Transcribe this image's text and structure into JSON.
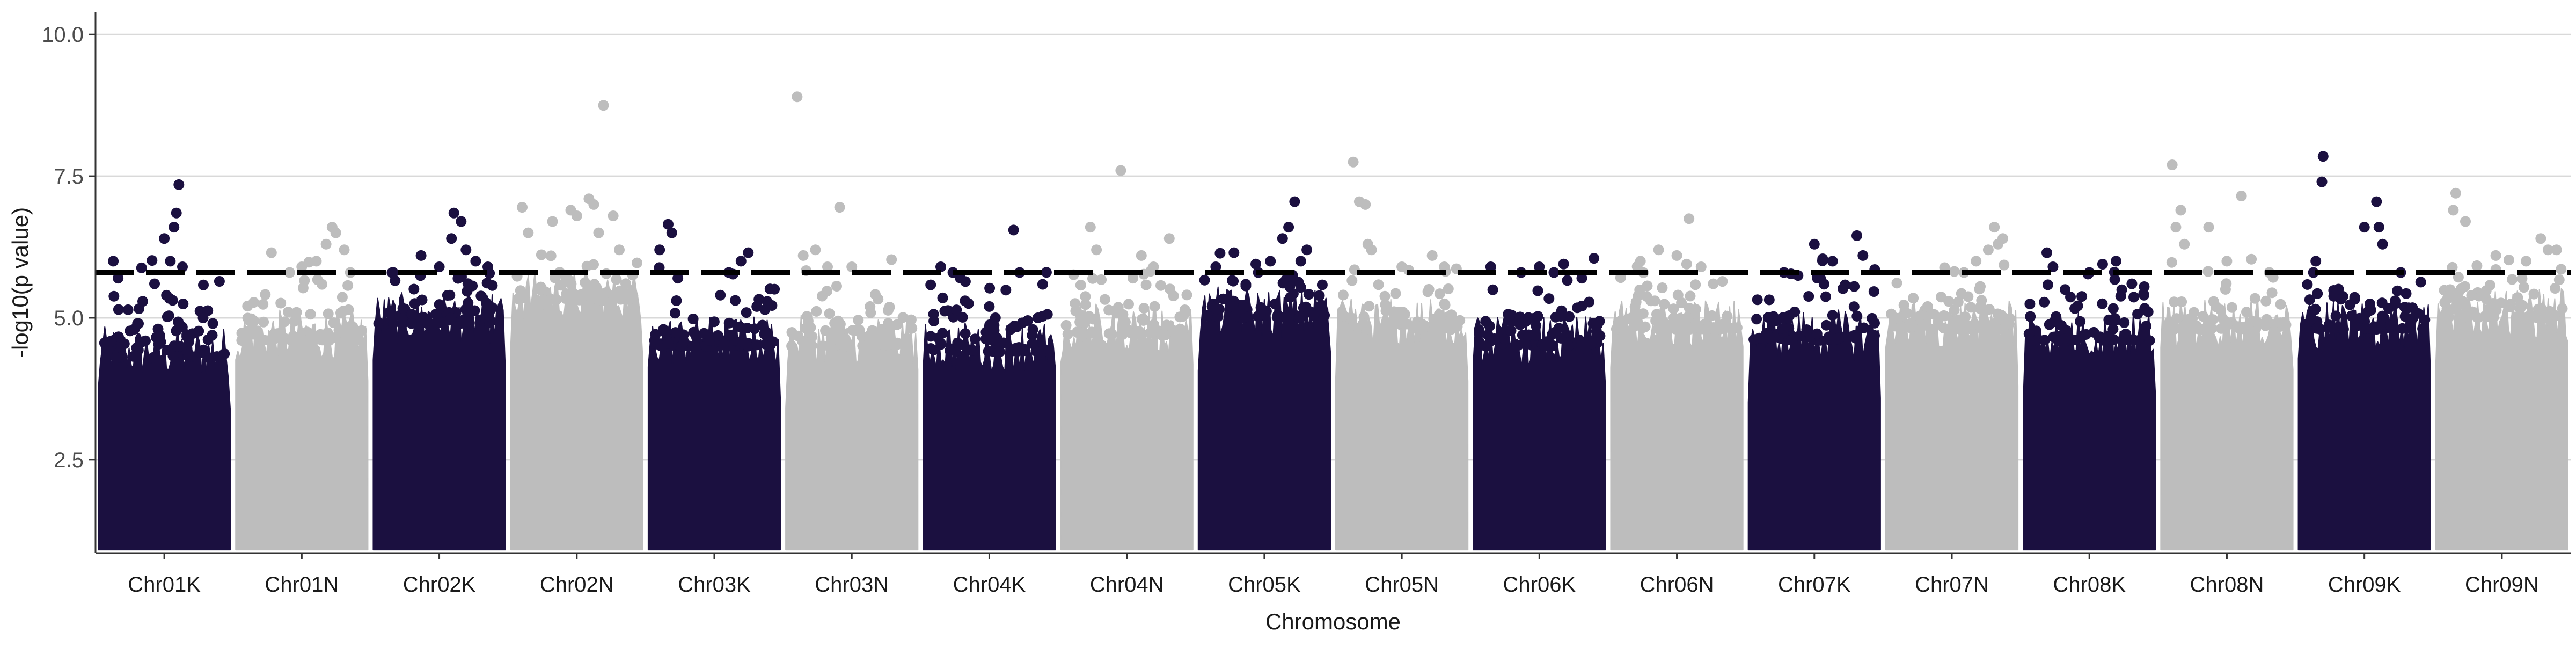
{
  "chart_data": {
    "type": "scatter",
    "title": "",
    "xlabel": "Chromosome",
    "ylabel": "-log10(p value)",
    "ylim": [
      0.85,
      10.4
    ],
    "y_ticks": [
      2.5,
      5.0,
      7.5,
      10.0
    ],
    "y_tick_labels": [
      "2.5",
      "5.0",
      "7.5",
      "10.0"
    ],
    "grid": "horizontal major lines",
    "legend": "none",
    "threshold": 5.8,
    "threshold_style": "dashed black line",
    "point_floor": 1.0,
    "colors": {
      "K": "#1b1040",
      "N": "#bdbdbd",
      "threshold": "#000000",
      "grid": "#d9d9d9",
      "axis": "#333333"
    },
    "categories": [
      "Chr01K",
      "Chr01N",
      "Chr02K",
      "Chr02N",
      "Chr03K",
      "Chr03N",
      "Chr04K",
      "Chr04N",
      "Chr05K",
      "Chr05N",
      "Chr06K",
      "Chr06N",
      "Chr07K",
      "Chr07N",
      "Chr08K",
      "Chr08N",
      "Chr09K",
      "Chr09N"
    ],
    "series": [
      {
        "category": "Chr01K",
        "color": "#1b1040",
        "dense_top": 4.3,
        "max_y": 7.35,
        "top_points": [
          [
            0.08,
            6.0
          ],
          [
            0.12,
            5.7
          ],
          [
            0.28,
            4.9
          ],
          [
            0.42,
            5.6
          ],
          [
            0.5,
            6.4
          ],
          [
            0.55,
            6.0
          ],
          [
            0.58,
            6.6
          ],
          [
            0.6,
            6.85
          ],
          [
            0.62,
            7.35
          ],
          [
            0.65,
            5.9
          ],
          [
            0.82,
            5.0
          ],
          [
            0.9,
            4.9
          ]
        ]
      },
      {
        "category": "Chr01N",
        "color": "#bdbdbd",
        "dense_top": 4.6,
        "max_y": 6.6,
        "top_points": [
          [
            0.25,
            6.15
          ],
          [
            0.4,
            5.8
          ],
          [
            0.5,
            5.9
          ],
          [
            0.62,
            6.0
          ],
          [
            0.7,
            6.3
          ],
          [
            0.75,
            6.6
          ],
          [
            0.78,
            6.5
          ],
          [
            0.85,
            6.2
          ],
          [
            0.9,
            5.8
          ]
        ]
      },
      {
        "category": "Chr02K",
        "color": "#1b1040",
        "dense_top": 4.9,
        "max_y": 6.85,
        "top_points": [
          [
            0.12,
            5.8
          ],
          [
            0.35,
            6.1
          ],
          [
            0.5,
            5.9
          ],
          [
            0.6,
            6.4
          ],
          [
            0.62,
            6.85
          ],
          [
            0.68,
            6.7
          ],
          [
            0.72,
            6.2
          ],
          [
            0.8,
            6.0
          ],
          [
            0.9,
            5.9
          ]
        ]
      },
      {
        "category": "Chr02N",
        "color": "#bdbdbd",
        "dense_top": 5.3,
        "max_y": 8.75,
        "top_points": [
          [
            0.05,
            6.95
          ],
          [
            0.1,
            6.5
          ],
          [
            0.3,
            6.7
          ],
          [
            0.45,
            6.9
          ],
          [
            0.5,
            6.8
          ],
          [
            0.6,
            7.1
          ],
          [
            0.64,
            7.0
          ],
          [
            0.68,
            6.5
          ],
          [
            0.72,
            8.75
          ],
          [
            0.8,
            6.8
          ],
          [
            0.85,
            6.2
          ]
        ]
      },
      {
        "category": "Chr03K",
        "color": "#1b1040",
        "dense_top": 4.5,
        "max_y": 6.65,
        "top_points": [
          [
            0.05,
            6.2
          ],
          [
            0.12,
            6.65
          ],
          [
            0.15,
            6.5
          ],
          [
            0.2,
            5.7
          ],
          [
            0.55,
            5.4
          ],
          [
            0.62,
            5.8
          ],
          [
            0.72,
            6.0
          ],
          [
            0.78,
            6.15
          ],
          [
            0.85,
            5.2
          ]
        ]
      },
      {
        "category": "Chr03N",
        "color": "#bdbdbd",
        "dense_top": 4.5,
        "max_y": 8.9,
        "top_points": [
          [
            0.05,
            8.9
          ],
          [
            0.1,
            6.1
          ],
          [
            0.2,
            6.2
          ],
          [
            0.3,
            5.9
          ],
          [
            0.4,
            6.95
          ],
          [
            0.5,
            5.9
          ],
          [
            0.65,
            5.2
          ],
          [
            0.8,
            4.9
          ]
        ]
      },
      {
        "category": "Chr04K",
        "color": "#1b1040",
        "dense_top": 4.4,
        "max_y": 6.55,
        "top_points": [
          [
            0.1,
            5.9
          ],
          [
            0.2,
            5.8
          ],
          [
            0.3,
            5.3
          ],
          [
            0.5,
            5.2
          ],
          [
            0.55,
            5.0
          ],
          [
            0.7,
            6.55
          ],
          [
            0.75,
            5.8
          ],
          [
            0.9,
            5.0
          ]
        ]
      },
      {
        "category": "Chr04N",
        "color": "#bdbdbd",
        "dense_top": 4.7,
        "max_y": 7.6,
        "top_points": [
          [
            0.2,
            6.6
          ],
          [
            0.25,
            6.2
          ],
          [
            0.45,
            7.6
          ],
          [
            0.55,
            5.7
          ],
          [
            0.62,
            6.1
          ],
          [
            0.72,
            5.9
          ],
          [
            0.85,
            6.4
          ]
        ]
      },
      {
        "category": "Chr05K",
        "color": "#1b1040",
        "dense_top": 5.0,
        "max_y": 7.05,
        "top_points": [
          [
            0.1,
            5.9
          ],
          [
            0.25,
            6.15
          ],
          [
            0.45,
            5.8
          ],
          [
            0.55,
            6.0
          ],
          [
            0.65,
            6.4
          ],
          [
            0.7,
            6.6
          ],
          [
            0.75,
            7.05
          ],
          [
            0.8,
            6.0
          ],
          [
            0.85,
            6.2
          ]
        ]
      },
      {
        "category": "Chr05N",
        "color": "#bdbdbd",
        "dense_top": 4.8,
        "max_y": 7.75,
        "top_points": [
          [
            0.1,
            7.75
          ],
          [
            0.15,
            7.05
          ],
          [
            0.2,
            7.0
          ],
          [
            0.22,
            6.3
          ],
          [
            0.25,
            6.2
          ],
          [
            0.5,
            5.9
          ],
          [
            0.75,
            6.1
          ],
          [
            0.85,
            5.9
          ]
        ]
      },
      {
        "category": "Chr06K",
        "color": "#1b1040",
        "dense_top": 4.5,
        "max_y": 6.05,
        "top_points": [
          [
            0.1,
            5.9
          ],
          [
            0.35,
            5.8
          ],
          [
            0.5,
            5.9
          ],
          [
            0.62,
            5.8
          ],
          [
            0.7,
            5.95
          ],
          [
            0.85,
            5.7
          ],
          [
            0.95,
            6.05
          ]
        ]
      },
      {
        "category": "Chr06N",
        "color": "#bdbdbd",
        "dense_top": 4.8,
        "max_y": 6.75,
        "top_points": [
          [
            0.2,
            6.0
          ],
          [
            0.35,
            6.2
          ],
          [
            0.5,
            6.1
          ],
          [
            0.6,
            6.75
          ],
          [
            0.7,
            5.9
          ],
          [
            0.8,
            5.6
          ]
        ]
      },
      {
        "category": "Chr07K",
        "color": "#1b1040",
        "dense_top": 4.6,
        "max_y": 6.45,
        "top_points": [
          [
            0.25,
            5.8
          ],
          [
            0.5,
            6.3
          ],
          [
            0.55,
            5.7
          ],
          [
            0.65,
            6.0
          ],
          [
            0.85,
            6.45
          ],
          [
            0.9,
            6.1
          ]
        ]
      },
      {
        "category": "Chr07N",
        "color": "#bdbdbd",
        "dense_top": 4.8,
        "max_y": 6.6,
        "top_points": [
          [
            0.3,
            5.2
          ],
          [
            0.6,
            5.8
          ],
          [
            0.7,
            6.0
          ],
          [
            0.8,
            6.2
          ],
          [
            0.85,
            6.6
          ],
          [
            0.88,
            6.3
          ],
          [
            0.92,
            6.4
          ]
        ]
      },
      {
        "category": "Chr08K",
        "color": "#1b1040",
        "dense_top": 4.6,
        "max_y": 6.15,
        "top_points": [
          [
            0.15,
            6.15
          ],
          [
            0.2,
            5.9
          ],
          [
            0.3,
            5.5
          ],
          [
            0.5,
            5.8
          ],
          [
            0.72,
            6.0
          ],
          [
            0.85,
            5.6
          ],
          [
            0.95,
            5.4
          ]
        ]
      },
      {
        "category": "Chr08N",
        "color": "#bdbdbd",
        "dense_top": 4.8,
        "max_y": 7.7,
        "top_points": [
          [
            0.05,
            7.7
          ],
          [
            0.08,
            6.6
          ],
          [
            0.12,
            6.9
          ],
          [
            0.15,
            6.3
          ],
          [
            0.35,
            6.6
          ],
          [
            0.5,
            6.0
          ],
          [
            0.62,
            7.15
          ],
          [
            0.85,
            5.8
          ]
        ]
      },
      {
        "category": "Chr09K",
        "color": "#1b1040",
        "dense_top": 4.8,
        "max_y": 7.85,
        "top_points": [
          [
            0.08,
            5.8
          ],
          [
            0.1,
            6.0
          ],
          [
            0.15,
            7.4
          ],
          [
            0.16,
            7.85
          ],
          [
            0.5,
            6.6
          ],
          [
            0.6,
            7.05
          ],
          [
            0.62,
            6.6
          ],
          [
            0.65,
            6.3
          ],
          [
            0.8,
            5.8
          ]
        ]
      },
      {
        "category": "Chr09N",
        "color": "#bdbdbd",
        "dense_top": 5.0,
        "max_y": 7.2,
        "top_points": [
          [
            0.1,
            6.9
          ],
          [
            0.12,
            7.2
          ],
          [
            0.2,
            6.7
          ],
          [
            0.45,
            6.1
          ],
          [
            0.7,
            6.0
          ],
          [
            0.82,
            6.4
          ],
          [
            0.88,
            6.2
          ],
          [
            0.95,
            6.2
          ]
        ]
      }
    ]
  }
}
